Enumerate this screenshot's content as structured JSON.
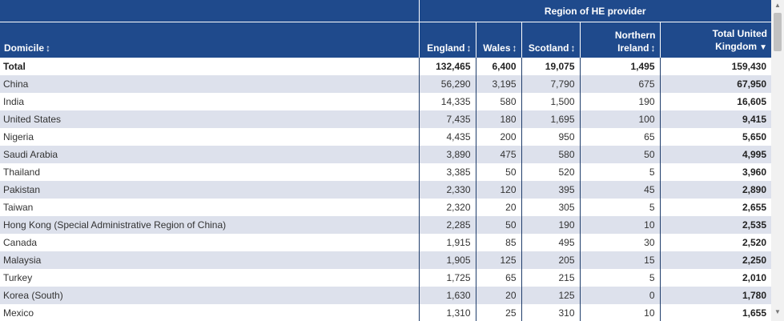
{
  "header": {
    "region_title": "Region of HE provider",
    "domicile": "Domicile",
    "columns": [
      "England",
      "Wales",
      "Scotland",
      "Northern Ireland",
      "Total United Kingdom"
    ],
    "col_ni_line1": "Northern",
    "col_ni_line2": "Ireland",
    "col_total_line1": "Total United",
    "col_total_line2": "Kingdom",
    "sort_glyph": "↕",
    "sort_desc_glyph": "▼"
  },
  "rows": [
    {
      "name": "Total",
      "v": [
        "132,465",
        "6,400",
        "19,075",
        "1,495",
        "159,430"
      ]
    },
    {
      "name": "China",
      "v": [
        "56,290",
        "3,195",
        "7,790",
        "675",
        "67,950"
      ]
    },
    {
      "name": "India",
      "v": [
        "14,335",
        "580",
        "1,500",
        "190",
        "16,605"
      ]
    },
    {
      "name": "United States",
      "v": [
        "7,435",
        "180",
        "1,695",
        "100",
        "9,415"
      ]
    },
    {
      "name": "Nigeria",
      "v": [
        "4,435",
        "200",
        "950",
        "65",
        "5,650"
      ]
    },
    {
      "name": "Saudi Arabia",
      "v": [
        "3,890",
        "475",
        "580",
        "50",
        "4,995"
      ]
    },
    {
      "name": "Thailand",
      "v": [
        "3,385",
        "50",
        "520",
        "5",
        "3,960"
      ]
    },
    {
      "name": "Pakistan",
      "v": [
        "2,330",
        "120",
        "395",
        "45",
        "2,890"
      ]
    },
    {
      "name": "Taiwan",
      "v": [
        "2,320",
        "20",
        "305",
        "5",
        "2,655"
      ]
    },
    {
      "name": "Hong Kong (Special Administrative Region of China)",
      "v": [
        "2,285",
        "50",
        "190",
        "10",
        "2,535"
      ]
    },
    {
      "name": "Canada",
      "v": [
        "1,915",
        "85",
        "495",
        "30",
        "2,520"
      ]
    },
    {
      "name": "Malaysia",
      "v": [
        "1,905",
        "125",
        "205",
        "15",
        "2,250"
      ]
    },
    {
      "name": "Turkey",
      "v": [
        "1,725",
        "65",
        "215",
        "5",
        "2,010"
      ]
    },
    {
      "name": "Korea (South)",
      "v": [
        "1,630",
        "20",
        "125",
        "0",
        "1,780"
      ]
    },
    {
      "name": "Mexico",
      "v": [
        "1,310",
        "25",
        "310",
        "10",
        "1,655"
      ]
    }
  ],
  "scrollbar": {
    "up_icon": "▲",
    "down_icon": "▼"
  }
}
